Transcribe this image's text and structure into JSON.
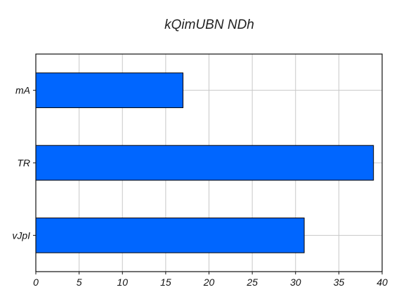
{
  "chart_data": {
    "type": "bar",
    "orientation": "horizontal",
    "title": "kQimUBN  NDh",
    "xlabel": "",
    "ylabel": "",
    "categories": [
      "mA",
      "TR",
      "vJpI"
    ],
    "values": [
      17,
      39,
      31
    ],
    "xlim": [
      0,
      40
    ],
    "xticks": [
      0,
      5,
      10,
      15,
      20,
      25,
      30,
      35,
      40
    ],
    "grid": true,
    "legend": "none",
    "bar_color": "#0066ff"
  }
}
